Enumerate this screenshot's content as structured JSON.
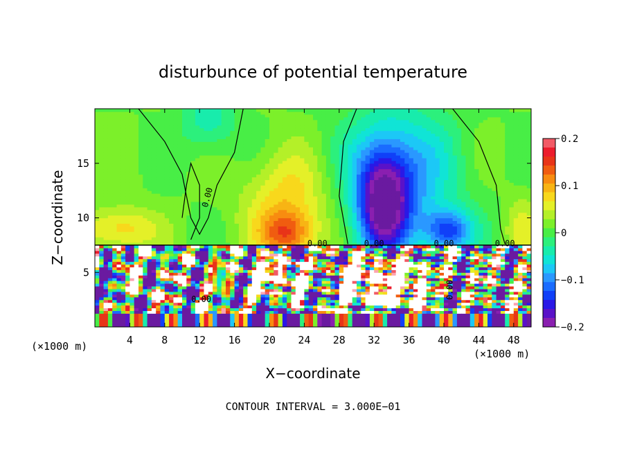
{
  "chart_data": {
    "type": "heatmap",
    "title": "disturbunce of potential temperature",
    "xlabel": "X−coordinate",
    "ylabel": "Z−coordinate",
    "x_unit_left": "(×1000 m)",
    "x_unit_right": "(×1000 m)",
    "xlim": [
      0,
      50
    ],
    "ylim": [
      0,
      20
    ],
    "x_ticks": [
      4,
      8,
      12,
      16,
      20,
      24,
      28,
      32,
      36,
      40,
      44,
      48
    ],
    "x_tick_labels": [
      "4",
      "8",
      "12",
      "16",
      "20",
      "24",
      "28",
      "32",
      "36",
      "40",
      "44",
      "48"
    ],
    "y_ticks": [
      5,
      10,
      15
    ],
    "y_tick_labels": [
      "5",
      "10",
      "15"
    ],
    "colorbar": {
      "min": -0.2,
      "max": 0.2,
      "ticks": [
        0.2,
        0.1,
        0,
        -0.1,
        -0.2
      ],
      "tick_labels": [
        "0.2",
        "0.1",
        "0",
        "−0.1",
        "−0.2"
      ],
      "colors": [
        "#8a1fb0",
        "#5a12c8",
        "#2a18e6",
        "#1040f8",
        "#1a6cff",
        "#2a98ff",
        "#1cc8f6",
        "#10e4d6",
        "#18ecac",
        "#2cf07c",
        "#48ee46",
        "#7cf02a",
        "#b4f028",
        "#e4f028",
        "#f8d81c",
        "#f8b414",
        "#f88c10",
        "#f05c10",
        "#e83418",
        "#ec1c2c",
        "#f25a66",
        "#fca4b0"
      ]
    },
    "contour_labels": [
      "0.00",
      "0.00",
      "0.00",
      "0.00",
      "0.00",
      "0.00",
      "0.00"
    ],
    "footer": "CONTOUR INTERVAL = 3.000E−01",
    "grid": false
  }
}
